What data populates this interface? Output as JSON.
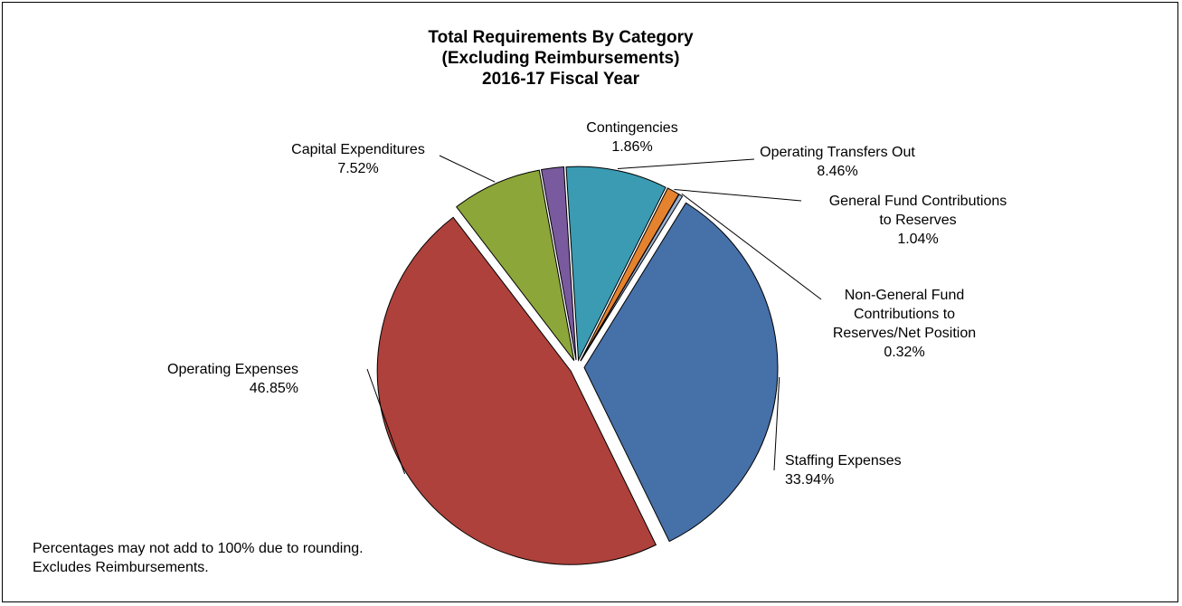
{
  "chart_data": {
    "type": "pie",
    "title_lines": [
      "Total Requirements By Category",
      "(Excluding Reimbursements)",
      "2016-17 Fiscal Year"
    ],
    "start_angle_deg": 31.7,
    "slices": [
      {
        "name": "Staffing Expenses",
        "label_lines": [
          "Staffing Expenses"
        ],
        "pct_text": "33.94%",
        "value": 33.94,
        "color": "#4670A8"
      },
      {
        "name": "Operating Expenses",
        "label_lines": [
          "Operating Expenses"
        ],
        "pct_text": "46.85%",
        "value": 46.85,
        "color": "#AE413B"
      },
      {
        "name": "Capital Expenditures",
        "label_lines": [
          "Capital Expenditures"
        ],
        "pct_text": "7.52%",
        "value": 7.52,
        "color": "#8DA63A"
      },
      {
        "name": "Contingencies",
        "label_lines": [
          "Contingencies"
        ],
        "pct_text": "1.86%",
        "value": 1.86,
        "color": "#7A5A9E"
      },
      {
        "name": "Operating Transfers Out",
        "label_lines": [
          "Operating Transfers Out"
        ],
        "pct_text": "8.46%",
        "value": 8.46,
        "color": "#3A9BB3"
      },
      {
        "name": "General Fund Contributions to Reserves",
        "label_lines": [
          "General Fund Contributions",
          "to Reserves"
        ],
        "pct_text": "1.04%",
        "value": 1.04,
        "color": "#E5822E"
      },
      {
        "name": "Non-General Fund Contributions to Reserves/Net Position",
        "label_lines": [
          "Non-General Fund",
          "Contributions to",
          "Reserves/Net Position"
        ],
        "pct_text": "0.32%",
        "value": 0.32,
        "color": "#9BAFCF"
      }
    ]
  },
  "notes": {
    "line1": "Percentages may not add to 100% due to rounding.",
    "line2": "Excludes Reimbursements."
  }
}
